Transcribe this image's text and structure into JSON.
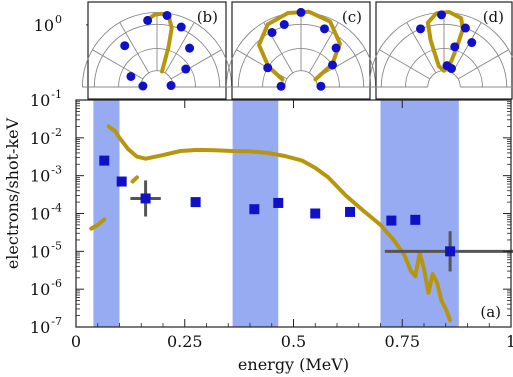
{
  "chart_data": {
    "type": "scatter",
    "xlabel": "energy (MeV)",
    "ylabel": "electrons/shot-keV",
    "x_ticks": [
      {
        "value": 0,
        "label": "0"
      },
      {
        "value": 0.25,
        "label": "0.25"
      },
      {
        "value": 0.5,
        "label": "0.5"
      },
      {
        "value": 0.75,
        "label": "0.75"
      },
      {
        "value": 1,
        "label": "1"
      }
    ],
    "y_ticks": [
      {
        "exp": -7,
        "base": "10",
        "sup": "-7"
      },
      {
        "exp": -6,
        "base": "10",
        "sup": "-6"
      },
      {
        "exp": -5,
        "base": "10",
        "sup": "-5"
      },
      {
        "exp": -4,
        "base": "10",
        "sup": "-4"
      },
      {
        "exp": -3,
        "base": "10",
        "sup": "-3"
      },
      {
        "exp": -2,
        "base": "10",
        "sup": "-2"
      },
      {
        "exp": -1,
        "base": "10",
        "sup": "-1"
      },
      {
        "exp": 0,
        "base": "10",
        "sup": "0"
      }
    ],
    "xlim": [
      0,
      1
    ],
    "ylim_log10": [
      -7,
      -1
    ],
    "y_scale": "log",
    "shaded_bands": [
      {
        "x0": 0.04,
        "x1": 0.1
      },
      {
        "x0": 0.36,
        "x1": 0.465
      },
      {
        "x0": 0.7,
        "x1": 0.88
      }
    ],
    "series": [
      {
        "style": "line",
        "color": "#b8960c",
        "segments": [
          [
            [
              0.035,
              4e-05
            ],
            [
              0.05,
              5e-05
            ],
            [
              0.065,
              7e-05
            ]
          ],
          [
            [
              0.13,
              0.0007
            ],
            [
              0.14,
              0.0009
            ]
          ],
          [
            [
              0.075,
              0.02
            ],
            [
              0.09,
              0.015
            ],
            [
              0.1,
              0.01
            ],
            [
              0.12,
              0.005
            ],
            [
              0.14,
              0.0032
            ],
            [
              0.16,
              0.0028
            ],
            [
              0.2,
              0.0035
            ],
            [
              0.24,
              0.0045
            ],
            [
              0.28,
              0.0048
            ],
            [
              0.32,
              0.0047
            ],
            [
              0.36,
              0.0045
            ],
            [
              0.4,
              0.0044
            ],
            [
              0.44,
              0.004
            ],
            [
              0.48,
              0.0033
            ],
            [
              0.52,
              0.0025
            ],
            [
              0.55,
              0.0016
            ],
            [
              0.58,
              0.0009
            ],
            [
              0.62,
              0.0003
            ],
            [
              0.66,
              0.00012
            ],
            [
              0.7,
              5e-05
            ],
            [
              0.73,
              2e-05
            ],
            [
              0.755,
              8e-06
            ],
            [
              0.77,
              3e-06
            ],
            [
              0.78,
              2.2e-06
            ],
            [
              0.79,
              9e-06
            ],
            [
              0.8,
              3.5e-06
            ],
            [
              0.81,
              8e-07
            ],
            [
              0.82,
              2.5e-06
            ],
            [
              0.83,
              1.5e-06
            ],
            [
              0.84,
              5e-07
            ],
            [
              0.85,
              3e-07
            ],
            [
              0.86,
              1.5e-07
            ]
          ]
        ]
      },
      {
        "style": "markers",
        "color": "#1010c8",
        "points": [
          {
            "x": 0.065,
            "y": 0.0025
          },
          {
            "x": 0.105,
            "y": 0.0007
          },
          {
            "x": 0.16,
            "y": 0.00025,
            "xerr": 0.035,
            "yerr_factor": 3
          },
          {
            "x": 0.275,
            "y": 0.0002
          },
          {
            "x": 0.41,
            "y": 0.00013
          },
          {
            "x": 0.465,
            "y": 0.00019
          },
          {
            "x": 0.55,
            "y": 0.0001
          },
          {
            "x": 0.63,
            "y": 0.00011
          },
          {
            "x": 0.725,
            "y": 6.5e-05
          },
          {
            "x": 0.78,
            "y": 6.8e-05
          },
          {
            "x": 0.86,
            "y": 1e-05,
            "xerr": 0.15,
            "yerr_factor": 3.4
          }
        ]
      }
    ],
    "panel_a_label": "(a)",
    "insets": [
      {
        "label": "(b)",
        "rlim_log10": [
          -1.35,
          0.35
        ],
        "points": [
          {
            "theta_deg": 176,
            "r": 0.09
          },
          {
            "theta_deg": 158,
            "r": 0.18
          },
          {
            "theta_deg": 128,
            "r": 0.6
          },
          {
            "theta_deg": 98,
            "r": 1.25
          },
          {
            "theta_deg": 82,
            "r": 1.6
          },
          {
            "theta_deg": 68,
            "r": 1.1
          },
          {
            "theta_deg": 50,
            "r": 0.55
          },
          {
            "theta_deg": 32,
            "r": 0.24
          },
          {
            "theta_deg": 6,
            "r": 0.09
          }
        ],
        "curve": [
          {
            "theta_deg": 98,
            "r": 1.3
          },
          {
            "theta_deg": 92,
            "r": 1.6
          },
          {
            "theta_deg": 86,
            "r": 1.7
          },
          {
            "theta_deg": 80,
            "r": 1.45
          },
          {
            "theta_deg": 76,
            "r": 0.9
          },
          {
            "theta_deg": 74,
            "r": 0.35
          },
          {
            "theta_deg": 72,
            "r": 0.1
          }
        ]
      },
      {
        "label": "(c)",
        "rlim_log10": [
          -1.35,
          0.35
        ],
        "points": [
          {
            "theta_deg": 178,
            "r": 0.12
          },
          {
            "theta_deg": 150,
            "r": 0.3
          },
          {
            "theta_deg": 118,
            "r": 0.95
          },
          {
            "theta_deg": 105,
            "r": 1.1
          },
          {
            "theta_deg": 90,
            "r": 1.8
          },
          {
            "theta_deg": 68,
            "r": 1.0
          },
          {
            "theta_deg": 48,
            "r": 0.6
          },
          {
            "theta_deg": 35,
            "r": 0.3
          },
          {
            "theta_deg": 2,
            "r": 0.12
          }
        ],
        "curve": [
          {
            "theta_deg": 158,
            "r": 0.12
          },
          {
            "theta_deg": 148,
            "r": 0.3
          },
          {
            "theta_deg": 135,
            "r": 0.85
          },
          {
            "theta_deg": 118,
            "r": 1.5
          },
          {
            "theta_deg": 100,
            "r": 1.85
          },
          {
            "theta_deg": 84,
            "r": 1.9
          },
          {
            "theta_deg": 66,
            "r": 1.55
          },
          {
            "theta_deg": 48,
            "r": 0.8
          },
          {
            "theta_deg": 36,
            "r": 0.3
          },
          {
            "theta_deg": 28,
            "r": 0.1
          }
        ]
      },
      {
        "label": "(d)",
        "rlim_log10": [
          -1.35,
          0.35
        ],
        "points": [
          {
            "theta_deg": 112,
            "r": 1.0
          },
          {
            "theta_deg": 92,
            "r": 1.6
          },
          {
            "theta_deg": 70,
            "r": 1.0
          },
          {
            "theta_deg": 58,
            "r": 0.6
          },
          {
            "theta_deg": 75,
            "r": 0.35
          },
          {
            "theta_deg": 82,
            "r": 0.13
          },
          {
            "theta_deg": 68,
            "r": 0.12
          }
        ],
        "curve": [
          {
            "theta_deg": 104,
            "r": 0.13
          },
          {
            "theta_deg": 106,
            "r": 0.5
          },
          {
            "theta_deg": 104,
            "r": 1.2
          },
          {
            "theta_deg": 96,
            "r": 1.75
          },
          {
            "theta_deg": 86,
            "r": 1.85
          },
          {
            "theta_deg": 76,
            "r": 1.5
          },
          {
            "theta_deg": 72,
            "r": 0.9
          },
          {
            "theta_deg": 72,
            "r": 0.35
          },
          {
            "theta_deg": 76,
            "r": 0.13
          },
          {
            "theta_deg": 90,
            "r": 0.1
          },
          {
            "theta_deg": 104,
            "r": 0.13
          }
        ]
      }
    ]
  }
}
